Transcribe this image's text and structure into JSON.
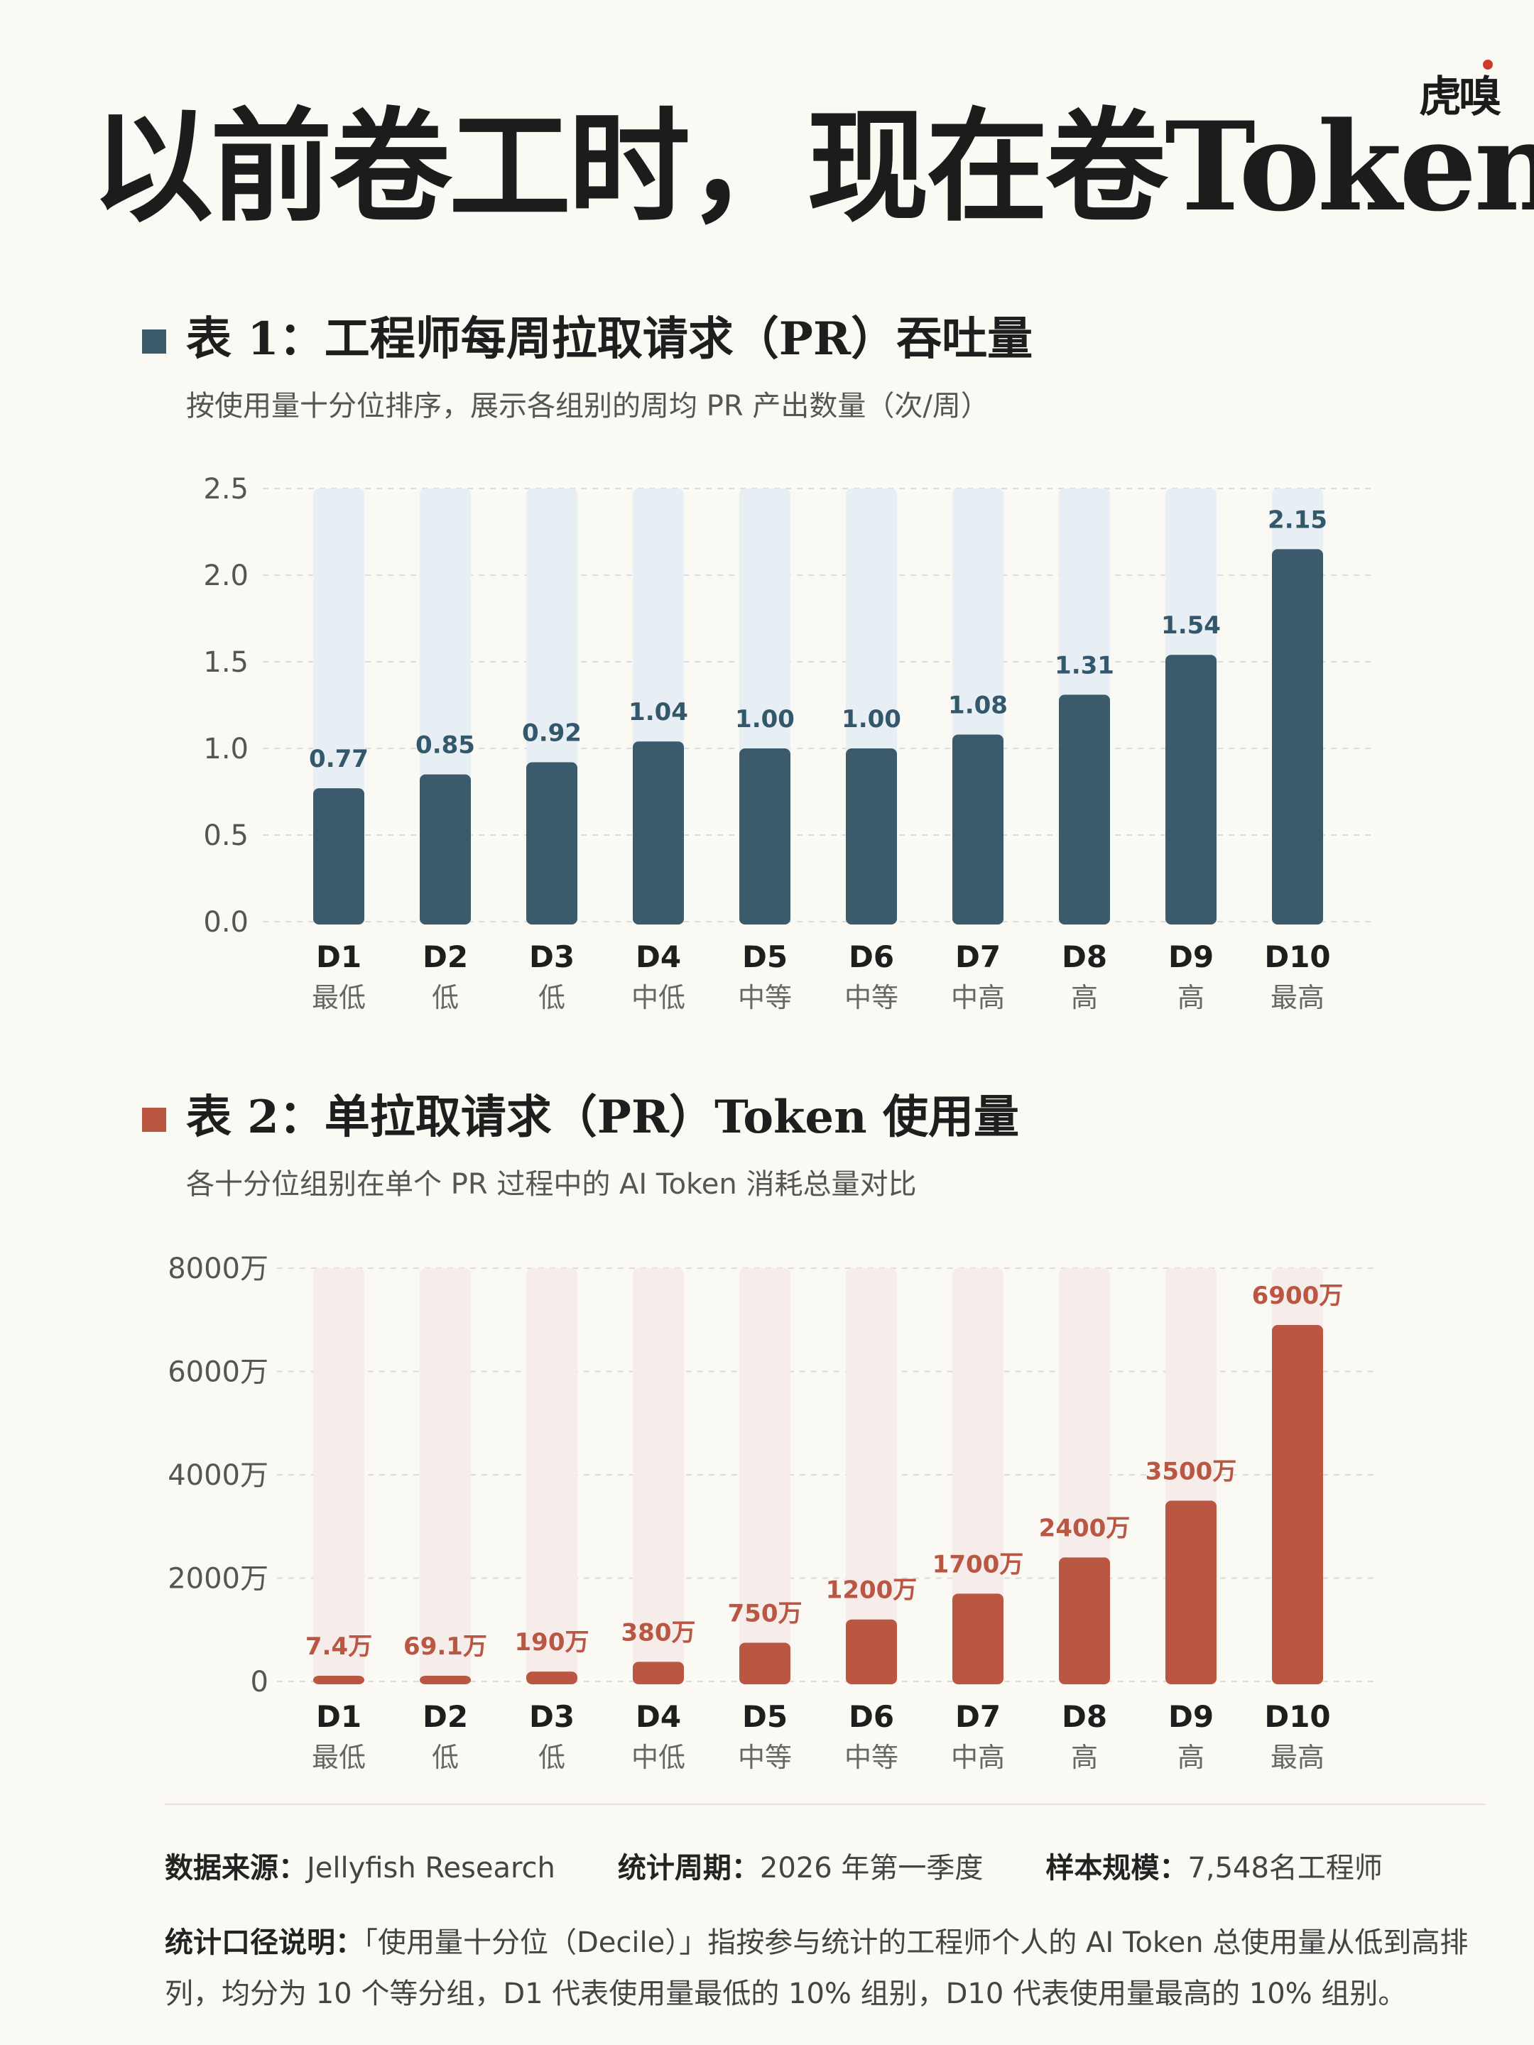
{
  "brand": "虎嗅",
  "title": "以前卷工时，现在卷Token",
  "chart1": {
    "heading": "表 1：工程师每周拉取请求（PR）吞吐量",
    "subtitle": "按使用量十分位排序，展示各组别的周均 PR 产出数量（次/周）",
    "color": "#3b5a6b",
    "track_color": "#e8eff4",
    "label_color": "#34586b"
  },
  "chart2": {
    "heading": "表 2：单拉取请求（PR）Token 使用量",
    "subtitle": "各十分位组别在单个 PR 过程中的 AI Token 消耗总量对比",
    "color": "#b95743",
    "track_color": "#f6ecea",
    "label_color": "#b95743"
  },
  "chart_data": [
    {
      "type": "bar",
      "categories": [
        "D1",
        "D2",
        "D3",
        "D4",
        "D5",
        "D6",
        "D7",
        "D8",
        "D9",
        "D10"
      ],
      "sublabels": [
        "最低",
        "低",
        "低",
        "中低",
        "中等",
        "中等",
        "中高",
        "高",
        "高",
        "最高"
      ],
      "values": [
        0.77,
        0.85,
        0.92,
        1.04,
        1.0,
        1.0,
        1.08,
        1.31,
        1.54,
        2.15
      ],
      "value_labels": [
        "0.77",
        "0.85",
        "0.92",
        "1.04",
        "1.00",
        "1.00",
        "1.08",
        "1.31",
        "1.54",
        "2.15"
      ],
      "ylim": [
        0,
        2.5
      ],
      "yticks": [
        "0.0",
        "0.5",
        "1.0",
        "1.5",
        "2.0",
        "2.5"
      ],
      "grid": true
    },
    {
      "type": "bar",
      "categories": [
        "D1",
        "D2",
        "D3",
        "D4",
        "D5",
        "D6",
        "D7",
        "D8",
        "D9",
        "D10"
      ],
      "sublabels": [
        "最低",
        "低",
        "低",
        "中低",
        "中等",
        "中等",
        "中高",
        "高",
        "高",
        "最高"
      ],
      "values": [
        7.4,
        69.1,
        190,
        380,
        750,
        1200,
        1700,
        2400,
        3500,
        6900
      ],
      "value_labels": [
        "7.4万",
        "69.1万",
        "190万",
        "380万",
        "750万",
        "1200万",
        "1700万",
        "2400万",
        "3500万",
        "6900万"
      ],
      "ylim": [
        0,
        8000
      ],
      "yticks": [
        "0",
        "2000万",
        "4000万",
        "6000万",
        "8000万"
      ],
      "grid": true
    }
  ],
  "footer": {
    "source_label": "数据来源：",
    "source": "Jellyfish Research",
    "period_label": "统计周期：",
    "period": "2026 年第一季度",
    "sample_label": "样本规模：",
    "sample": "7,548名工程师",
    "note_label": "统计口径说明：",
    "note": "「使用量十分位（Decile）」指按参与统计的工程师个人的 AI Token 总使用量从低到高排列，均分为 10 个等分组，D1 代表使用量最低的 10% 组别，D10 代表使用量最高的 10% 组别。"
  }
}
